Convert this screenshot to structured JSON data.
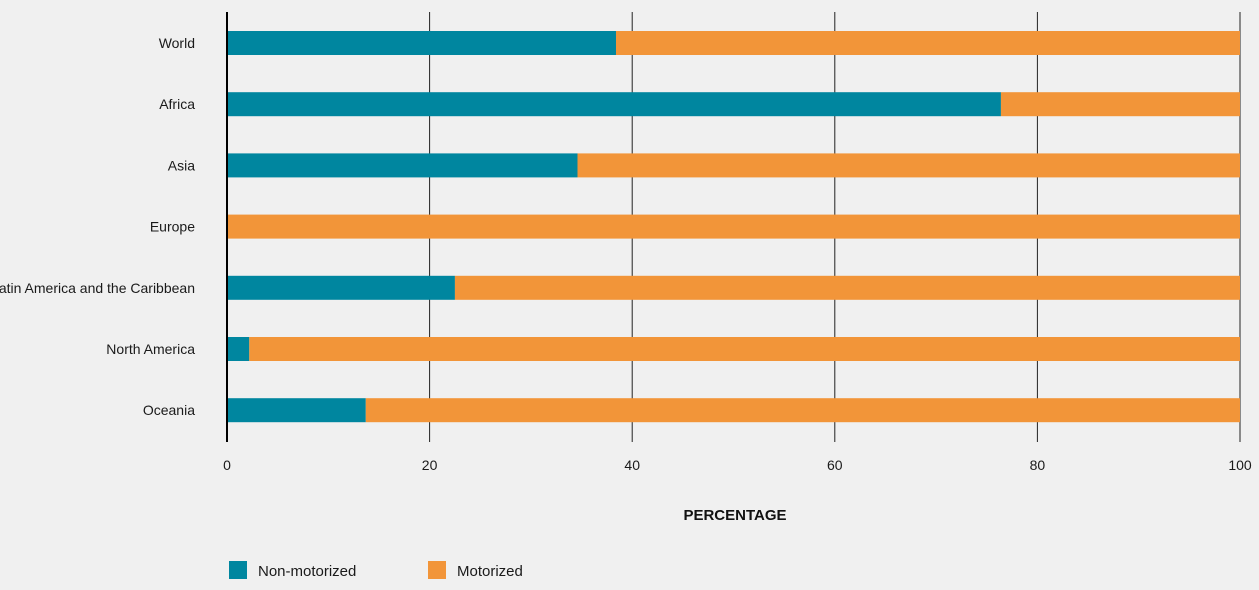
{
  "chart_data": {
    "type": "bar",
    "orientation": "horizontal",
    "stacked": true,
    "categories": [
      "World",
      "Africa",
      "Asia",
      "Europe",
      "Latin America and the Caribbean",
      "North America",
      "Oceania"
    ],
    "series": [
      {
        "name": "Non-motorized",
        "color": "#00869f",
        "values": [
          38.4,
          76.4,
          34.6,
          0,
          22.5,
          2.2,
          13.7
        ]
      },
      {
        "name": "Motorized",
        "color": "#f29539",
        "values": [
          61.6,
          23.6,
          65.4,
          100,
          77.5,
          97.8,
          86.3
        ]
      }
    ],
    "x_ticks": [
      "0",
      "20",
      "40",
      "60",
      "80",
      "100"
    ],
    "xlabel": "PERCENTAGE",
    "ylabel": "",
    "xlim": [
      0,
      100
    ],
    "grid": "vertical",
    "legend_position": "bottom-left"
  }
}
